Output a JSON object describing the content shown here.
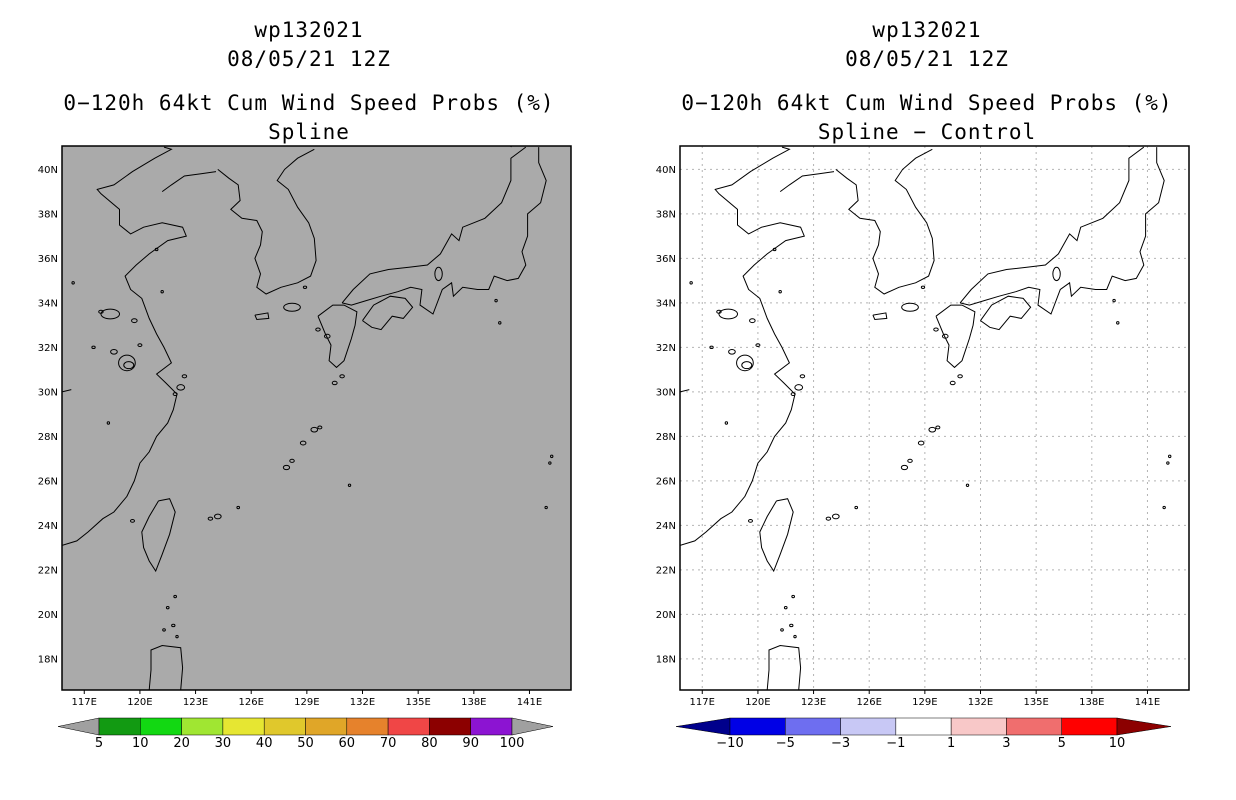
{
  "panels": [
    {
      "storm_id": "wp132021",
      "datetime": "08/05/21 12Z",
      "title": "0−120h 64kt Cum Wind Speed Probs (%)",
      "subtitle": "Spline",
      "map_background": "#aaaaaa",
      "show_grid": false,
      "legend": {
        "labels": [
          "5",
          "10",
          "20",
          "30",
          "40",
          "50",
          "60",
          "70",
          "80",
          "90",
          "100"
        ],
        "colors": [
          "#a0a0a0",
          "#129a12",
          "#12d812",
          "#a0e632",
          "#e6e632",
          "#e0c82c",
          "#e0a628",
          "#e6822c",
          "#f04646",
          "#8c0000",
          "#8c14d2",
          "#a0a0a0"
        ]
      }
    },
    {
      "storm_id": "wp132021",
      "datetime": "08/05/21 12Z",
      "title": "0−120h 64kt Cum Wind Speed Probs (%)",
      "subtitle": "Spline − Control",
      "map_background": "#ffffff",
      "show_grid": true,
      "legend": {
        "labels": [
          "−10",
          "−5",
          "−3",
          "−1",
          "1",
          "3",
          "5",
          "10"
        ],
        "colors": [
          "#00008c",
          "#0000e6",
          "#6e6ef0",
          "#c8c8f5",
          "#ffffff",
          "#f8c8c8",
          "#f06e6e",
          "#ff0000",
          "#8c0000"
        ]
      }
    }
  ],
  "axes": {
    "lon_labels": [
      "117E",
      "120E",
      "123E",
      "126E",
      "129E",
      "132E",
      "135E",
      "138E",
      "141E"
    ],
    "lat_labels": [
      "40N",
      "38N",
      "36N",
      "34N",
      "32N",
      "30N",
      "28N",
      "26N",
      "24N",
      "22N",
      "20N",
      "18N"
    ]
  }
}
